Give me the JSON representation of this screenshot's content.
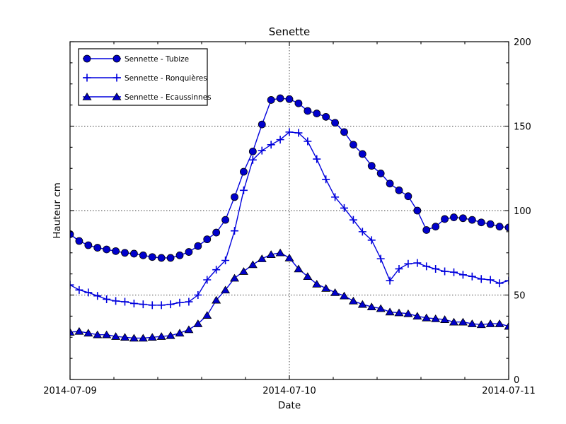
{
  "chart_data": {
    "type": "line",
    "title": "Senette",
    "xlabel": "Date",
    "ylabel": "Hauteur cm",
    "ylim": [
      0,
      200
    ],
    "yticks": [
      0,
      50,
      100,
      150,
      200
    ],
    "ytick_labels": [
      "0",
      "50",
      "100",
      "150",
      "200"
    ],
    "y_minor_ticks": [
      12.5,
      25,
      37.5,
      62.5,
      75,
      87.5,
      112.5,
      125,
      137.5,
      162.5,
      175,
      187.5
    ],
    "xtick_labels": [
      "2014-07-09",
      "2014-07-10",
      "2014-07-11"
    ],
    "x_major_hours": [
      0,
      24,
      48
    ],
    "x_minor_hours": [
      4.8,
      9.6,
      14.4,
      19.2,
      28.8,
      33.6,
      38.4,
      43.2
    ],
    "x_total_hours": 48,
    "grid": true,
    "grid_style": "dotted",
    "legend_position": "upper left",
    "colors": {
      "line": "#0000dd",
      "marker_fill": "#0000cc",
      "marker_edge": "#000000",
      "grid": "#444444",
      "axis": "#000000",
      "background": "#ffffff"
    },
    "series": [
      {
        "name": "Sennette - Tubize",
        "marker": "circle",
        "values": [
          86,
          82,
          79.5,
          78,
          77,
          76,
          75,
          74.5,
          73.5,
          72.5,
          72,
          72,
          73.5,
          75.5,
          79,
          83,
          87,
          94.5,
          108,
          123,
          135,
          151,
          165.5,
          166.5,
          166,
          163.5,
          159,
          157.5,
          155.5,
          152,
          146.5,
          139,
          133.5,
          126.5,
          122,
          116,
          112,
          108.5,
          100,
          88.5,
          90.5,
          95,
          96,
          95.5,
          94.5,
          93,
          92,
          90.5,
          90
        ]
      },
      {
        "name": "Sennette - Ronquières",
        "marker": "plus",
        "values": [
          56,
          53,
          51.5,
          49.5,
          47.5,
          46.5,
          46,
          45,
          44.5,
          44,
          44,
          44.5,
          45.5,
          46,
          50,
          59,
          65,
          70.5,
          88,
          112,
          130,
          135.5,
          139,
          142,
          146.5,
          146,
          141,
          130.5,
          118.5,
          108,
          101.5,
          94.5,
          87.5,
          82.5,
          71.5,
          58.5,
          65.5,
          68.5,
          69,
          67,
          65.5,
          64,
          63.5,
          62,
          61,
          59.5,
          59,
          57,
          58.5
        ]
      },
      {
        "name": "Sennette - Ecaussinnes",
        "marker": "triangle",
        "values": [
          28,
          28.5,
          27.5,
          26.5,
          26.5,
          25.5,
          25,
          24.5,
          24.5,
          25,
          25.5,
          26,
          27.5,
          29.5,
          33,
          38,
          47,
          53,
          60,
          64,
          68,
          71.5,
          74,
          75,
          72,
          65.5,
          61,
          56.5,
          54,
          51.5,
          49.5,
          46.5,
          44.5,
          43,
          42,
          40,
          39.5,
          39,
          37.5,
          36.5,
          36,
          35.5,
          34,
          34,
          33,
          32.5,
          33,
          33,
          31.5
        ]
      }
    ]
  }
}
